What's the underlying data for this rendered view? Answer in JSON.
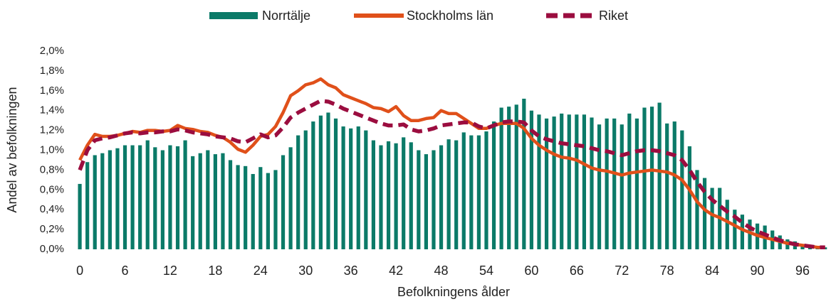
{
  "chart_data": {
    "type": "bar_line",
    "xlabel": "Befolkningens ålder",
    "ylabel": "Andel av befolkningen",
    "categories": [
      0,
      null,
      null,
      null,
      null,
      null,
      6,
      null,
      null,
      null,
      null,
      null,
      12,
      null,
      null,
      null,
      null,
      null,
      18,
      null,
      null,
      null,
      null,
      null,
      24,
      null,
      null,
      null,
      null,
      null,
      30,
      null,
      null,
      null,
      null,
      null,
      36,
      null,
      null,
      null,
      null,
      null,
      42,
      null,
      null,
      null,
      null,
      null,
      48,
      null,
      null,
      null,
      null,
      null,
      54,
      null,
      null,
      null,
      null,
      null,
      60,
      null,
      null,
      null,
      null,
      null,
      66,
      null,
      null,
      null,
      null,
      null,
      72,
      null,
      null,
      null,
      null,
      null,
      78,
      null,
      null,
      null,
      null,
      null,
      84,
      null,
      null,
      null,
      null,
      null,
      90,
      null,
      null,
      null,
      null,
      null,
      96,
      null,
      null,
      null
    ],
    "ylim": [
      0,
      2
    ],
    "yticks": [
      {
        "value": 0,
        "label": "0,0%"
      },
      {
        "value": 0.2,
        "label": "0,2%"
      },
      {
        "value": 0.4,
        "label": "0,4%"
      },
      {
        "value": 0.6,
        "label": "0,6%"
      },
      {
        "value": 0.8,
        "label": "0,8%"
      },
      {
        "value": 1.0,
        "label": "1,0%"
      },
      {
        "value": 1.2,
        "label": "1,2%"
      },
      {
        "value": 1.4,
        "label": "1,4%"
      },
      {
        "value": 1.6,
        "label": "1,6%"
      },
      {
        "value": 1.8,
        "label": "1,8%"
      },
      {
        "value": 2.0,
        "label": "2,0%"
      }
    ],
    "legend": "top",
    "series": [
      {
        "name": "Norrtälje",
        "kind": "bar",
        "color": "#0b7a68",
        "values": [
          0.66,
          0.88,
          0.95,
          0.97,
          1.0,
          1.02,
          1.05,
          1.05,
          1.05,
          1.1,
          1.03,
          1.0,
          1.05,
          1.04,
          1.1,
          0.94,
          0.97,
          1.0,
          0.96,
          0.97,
          0.9,
          0.85,
          0.84,
          0.76,
          0.83,
          0.77,
          0.8,
          0.95,
          1.03,
          1.15,
          1.2,
          1.29,
          1.35,
          1.38,
          1.32,
          1.24,
          1.22,
          1.24,
          1.2,
          1.1,
          1.05,
          1.09,
          1.07,
          1.13,
          1.08,
          1.0,
          0.96,
          1.0,
          1.05,
          1.11,
          1.1,
          1.18,
          1.15,
          1.15,
          1.19,
          1.29,
          1.43,
          1.44,
          1.46,
          1.52,
          1.4,
          1.36,
          1.32,
          1.34,
          1.37,
          1.36,
          1.36,
          1.36,
          1.33,
          1.26,
          1.32,
          1.32,
          1.26,
          1.37,
          1.32,
          1.43,
          1.44,
          1.48,
          1.27,
          1.29,
          1.2,
          1.04,
          0.8,
          0.72,
          0.62,
          0.62,
          0.5,
          0.4,
          0.35,
          0.3,
          0.26,
          0.24,
          0.19,
          0.14,
          0.1,
          0.08,
          0.05,
          0.04,
          0.03,
          0.02
        ]
      },
      {
        "name": "Stockholms län",
        "kind": "line",
        "color": "#e0501a",
        "values": [
          0.9,
          1.05,
          1.16,
          1.14,
          1.14,
          1.15,
          1.17,
          1.19,
          1.18,
          1.2,
          1.2,
          1.19,
          1.2,
          1.25,
          1.22,
          1.21,
          1.19,
          1.18,
          1.15,
          1.13,
          1.08,
          1.01,
          0.98,
          1.05,
          1.14,
          1.16,
          1.24,
          1.38,
          1.55,
          1.6,
          1.66,
          1.68,
          1.72,
          1.66,
          1.63,
          1.56,
          1.53,
          1.5,
          1.47,
          1.43,
          1.42,
          1.39,
          1.44,
          1.35,
          1.3,
          1.3,
          1.32,
          1.33,
          1.4,
          1.37,
          1.37,
          1.32,
          1.27,
          1.22,
          1.22,
          1.25,
          1.27,
          1.27,
          1.27,
          1.22,
          1.12,
          1.05,
          1.0,
          0.96,
          0.93,
          0.92,
          0.9,
          0.86,
          0.82,
          0.8,
          0.79,
          0.77,
          0.75,
          0.77,
          0.78,
          0.79,
          0.8,
          0.79,
          0.78,
          0.75,
          0.7,
          0.6,
          0.48,
          0.4,
          0.35,
          0.32,
          0.28,
          0.24,
          0.2,
          0.17,
          0.14,
          0.12,
          0.1,
          0.08,
          0.06,
          0.05,
          0.04,
          0.03,
          0.02,
          0.02
        ]
      },
      {
        "name": "Riket",
        "kind": "dashed-line",
        "color": "#9b0d3f",
        "values": [
          0.8,
          1.0,
          1.1,
          1.12,
          1.13,
          1.15,
          1.17,
          1.18,
          1.17,
          1.18,
          1.18,
          1.19,
          1.19,
          1.21,
          1.2,
          1.18,
          1.17,
          1.16,
          1.14,
          1.13,
          1.12,
          1.09,
          1.08,
          1.12,
          1.16,
          1.13,
          1.15,
          1.23,
          1.33,
          1.38,
          1.42,
          1.46,
          1.5,
          1.49,
          1.46,
          1.42,
          1.39,
          1.36,
          1.33,
          1.3,
          1.27,
          1.25,
          1.25,
          1.26,
          1.21,
          1.19,
          1.2,
          1.22,
          1.25,
          1.26,
          1.27,
          1.28,
          1.28,
          1.24,
          1.22,
          1.25,
          1.28,
          1.29,
          1.29,
          1.28,
          1.2,
          1.14,
          1.11,
          1.09,
          1.07,
          1.06,
          1.05,
          1.04,
          1.02,
          1.0,
          0.99,
          0.97,
          0.95,
          0.97,
          0.99,
          1.0,
          1.0,
          0.99,
          0.97,
          0.95,
          0.9,
          0.8,
          0.68,
          0.58,
          0.5,
          0.44,
          0.38,
          0.33,
          0.27,
          0.22,
          0.18,
          0.15,
          0.12,
          0.09,
          0.07,
          0.05,
          0.04,
          0.03,
          0.02,
          0.02
        ]
      }
    ]
  }
}
